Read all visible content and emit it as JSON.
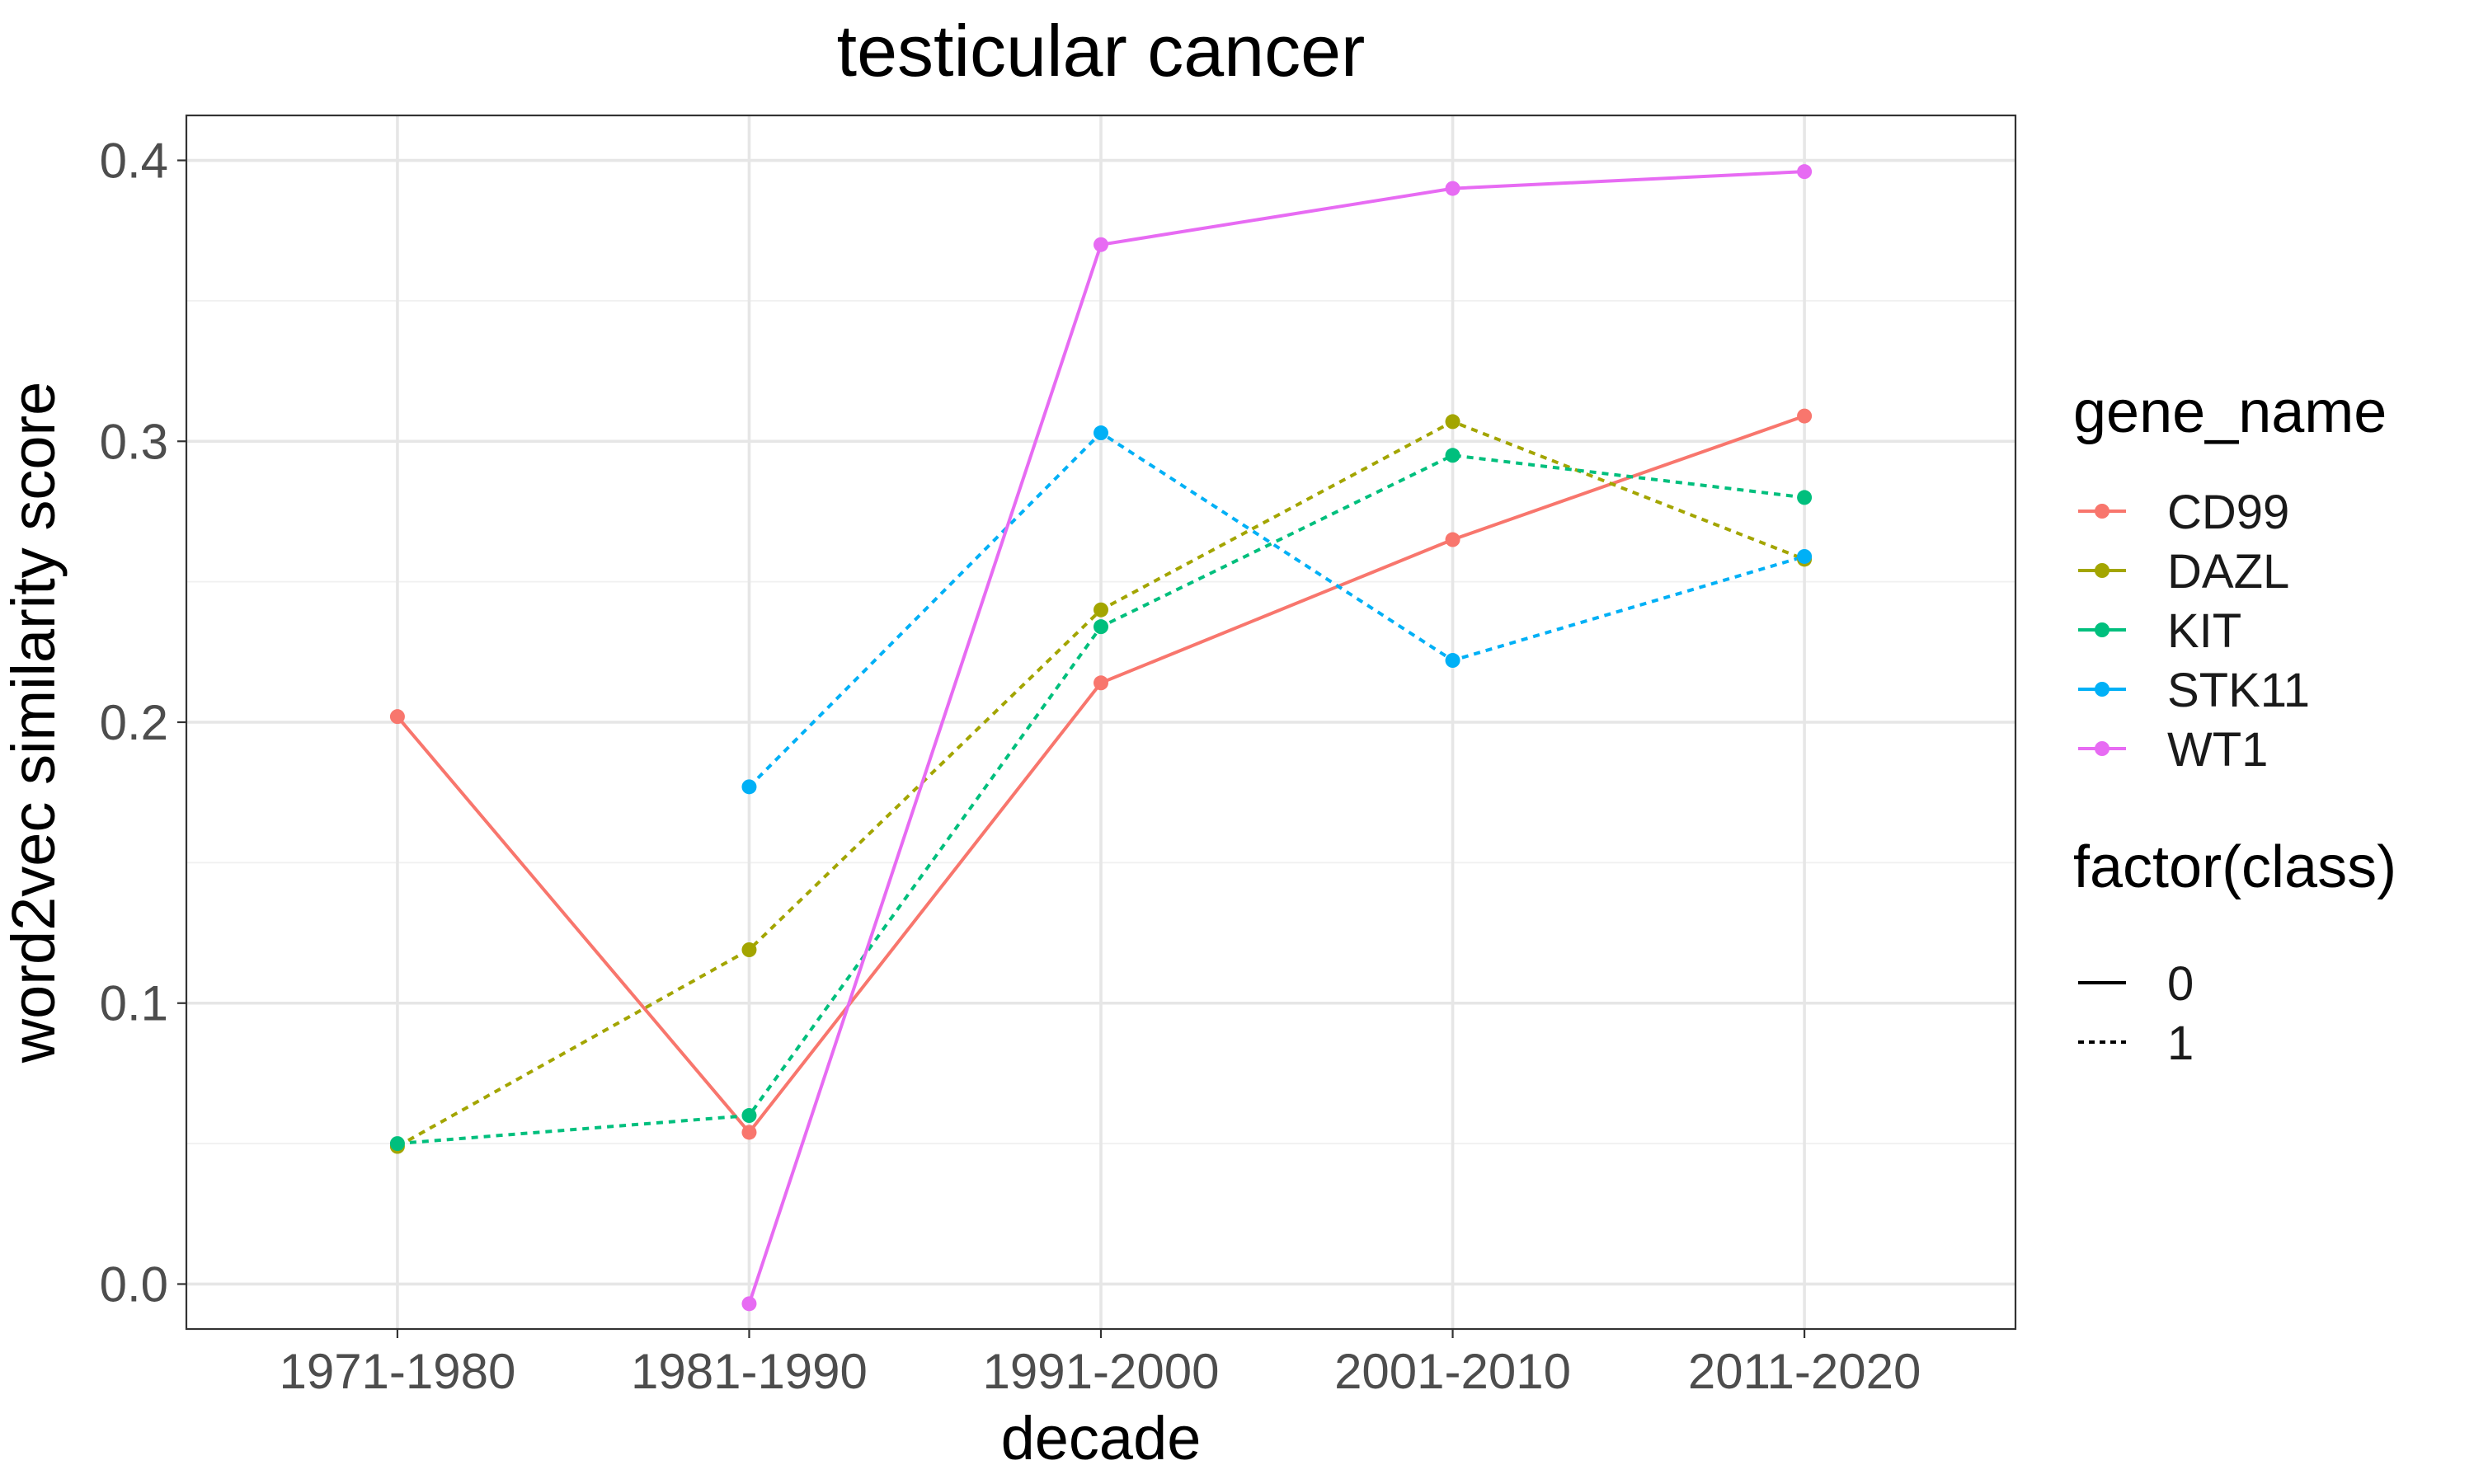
{
  "chart_data": {
    "type": "line",
    "title": "testicular cancer",
    "xlabel": "decade",
    "ylabel": "word2vec similarity score",
    "categories": [
      "1971-1980",
      "1981-1990",
      "1991-2000",
      "2001-2010",
      "2011-2020"
    ],
    "y_ticks": [
      "0.0",
      "0.1",
      "0.2",
      "0.3",
      "0.4"
    ],
    "ylim": [
      -0.016,
      0.416
    ],
    "grid": true,
    "legend_position": "right",
    "color_legend": {
      "title": "gene_name",
      "entries": [
        "CD99",
        "DAZL",
        "KIT",
        "STK11",
        "WT1"
      ]
    },
    "linetype_legend": {
      "title": "factor(class)",
      "entries": [
        {
          "label": "0",
          "linetype": "solid"
        },
        {
          "label": "1",
          "linetype": "dotted"
        }
      ]
    },
    "series": [
      {
        "name": "CD99",
        "color": "#F8766D",
        "class": "0",
        "values": [
          0.202,
          0.054,
          0.214,
          0.265,
          0.309
        ]
      },
      {
        "name": "DAZL",
        "color": "#A3A500",
        "class": "1",
        "values": [
          0.049,
          0.119,
          0.24,
          0.307,
          0.258
        ]
      },
      {
        "name": "KIT",
        "color": "#00BF7D",
        "class": "1",
        "values": [
          0.05,
          0.06,
          0.234,
          0.295,
          0.28
        ]
      },
      {
        "name": "STK11",
        "color": "#00B0F6",
        "class": "1",
        "values": [
          null,
          0.177,
          0.303,
          0.222,
          0.259
        ]
      },
      {
        "name": "WT1",
        "color": "#E76BF3",
        "class": "0",
        "values": [
          null,
          -0.007,
          0.37,
          0.39,
          0.396
        ]
      }
    ]
  }
}
